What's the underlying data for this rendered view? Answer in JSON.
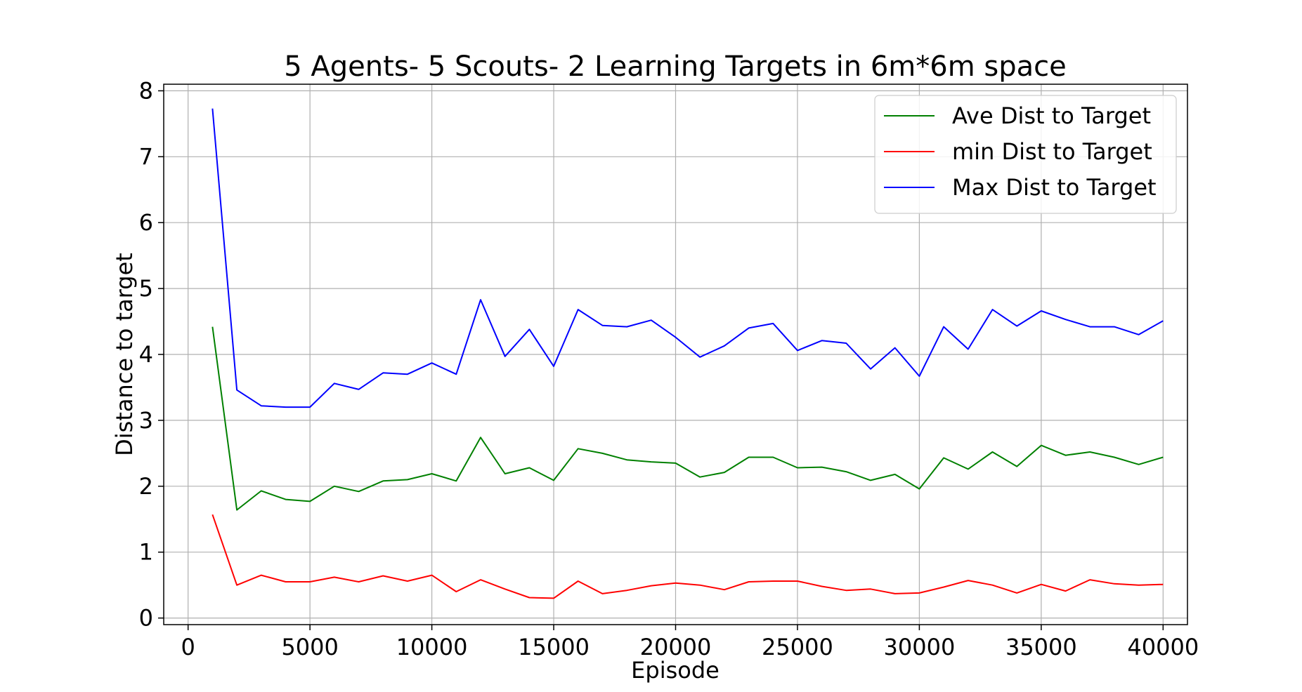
{
  "chart_data": {
    "type": "line",
    "title": "5 Agents- 5 Scouts- 2 Learning Targets in 6m*6m space",
    "xlabel": "Episode",
    "ylabel": "Distance to target",
    "xlim": [
      -1000,
      41000
    ],
    "ylim": [
      -0.1,
      8.1
    ],
    "xticks": [
      0,
      5000,
      10000,
      15000,
      20000,
      25000,
      30000,
      35000,
      40000
    ],
    "yticks": [
      0,
      1,
      2,
      3,
      4,
      5,
      6,
      7,
      8
    ],
    "grid": true,
    "legend_position": "top-right",
    "x": [
      1000,
      2000,
      3000,
      4000,
      5000,
      6000,
      7000,
      8000,
      9000,
      10000,
      11000,
      12000,
      13000,
      14000,
      15000,
      16000,
      17000,
      18000,
      19000,
      20000,
      21000,
      22000,
      23000,
      24000,
      25000,
      26000,
      27000,
      28000,
      29000,
      30000,
      31000,
      32000,
      33000,
      34000,
      35000,
      36000,
      37000,
      38000,
      39000,
      40000
    ],
    "series": [
      {
        "name": "Ave Dist to Target",
        "color": "#008000",
        "values": [
          4.42,
          1.64,
          1.93,
          1.8,
          1.77,
          2.0,
          1.92,
          2.08,
          2.1,
          2.19,
          2.08,
          2.74,
          2.19,
          2.28,
          2.09,
          2.57,
          2.5,
          2.4,
          2.37,
          2.35,
          2.14,
          2.21,
          2.44,
          2.44,
          2.28,
          2.29,
          2.22,
          2.09,
          2.18,
          1.96,
          2.43,
          2.26,
          2.52,
          2.3,
          2.62,
          2.47,
          2.52,
          2.44,
          2.33,
          2.44
        ]
      },
      {
        "name": "min Dist to Target",
        "color": "#ff0000",
        "values": [
          1.57,
          0.5,
          0.65,
          0.55,
          0.55,
          0.62,
          0.55,
          0.64,
          0.56,
          0.65,
          0.4,
          0.58,
          0.44,
          0.31,
          0.3,
          0.56,
          0.37,
          0.42,
          0.49,
          0.53,
          0.5,
          0.43,
          0.55,
          0.56,
          0.56,
          0.48,
          0.42,
          0.44,
          0.37,
          0.38,
          0.47,
          0.57,
          0.5,
          0.38,
          0.51,
          0.41,
          0.58,
          0.52,
          0.5,
          0.51
        ]
      },
      {
        "name": "Max Dist to Target",
        "color": "#0000ff",
        "values": [
          7.73,
          3.46,
          3.22,
          3.2,
          3.2,
          3.56,
          3.47,
          3.72,
          3.7,
          3.87,
          3.7,
          4.83,
          3.97,
          4.38,
          3.82,
          4.68,
          4.44,
          4.42,
          4.52,
          4.26,
          3.96,
          4.13,
          4.4,
          4.47,
          4.06,
          4.21,
          4.17,
          3.78,
          4.1,
          3.67,
          4.42,
          4.08,
          4.68,
          4.43,
          4.66,
          4.53,
          4.42,
          4.42,
          4.3,
          4.51
        ]
      }
    ]
  }
}
